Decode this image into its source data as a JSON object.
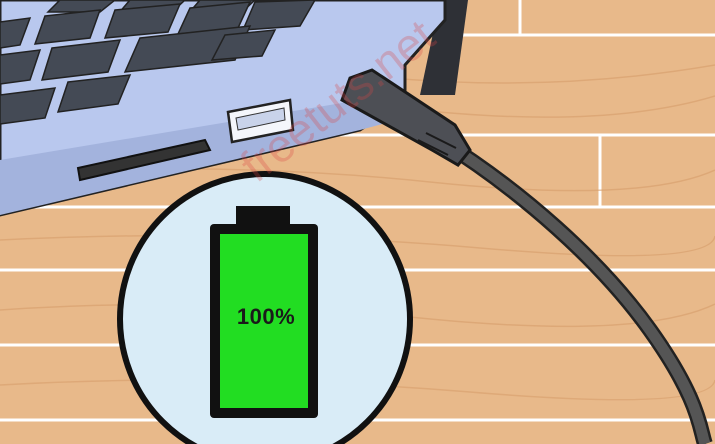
{
  "battery": {
    "label": "100%",
    "charge_level": 1.0,
    "fill_color": "#22dd22",
    "frame_color": "#111111"
  },
  "watermark": {
    "text": "freetuts.net"
  },
  "colors": {
    "wood": "#e8b98a",
    "wood_line": "#ffffff",
    "laptop_body": "#b9c8ee",
    "laptop_keys": "#444a55",
    "cable": "#555555",
    "bubble": "#d9ecf7"
  }
}
